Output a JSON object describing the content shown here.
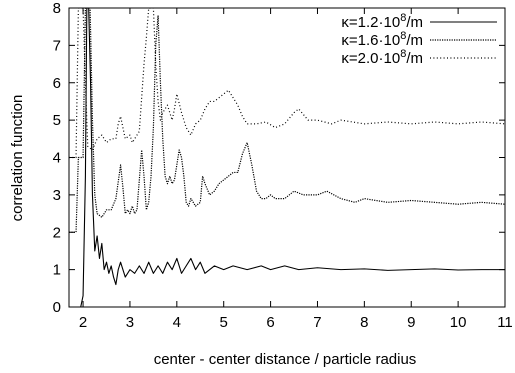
{
  "chart_data": {
    "type": "line",
    "title": "",
    "xlabel": "center - center distance / particle radius",
    "ylabel": "correlation function",
    "xlim": [
      1.7,
      11
    ],
    "ylim": [
      0,
      8
    ],
    "xticks": [
      "2",
      "3",
      "4",
      "5",
      "6",
      "7",
      "8",
      "9",
      "10",
      "11"
    ],
    "yticks": [
      "0",
      "1",
      "2",
      "3",
      "4",
      "5",
      "6",
      "7",
      "8"
    ],
    "grid": false,
    "legend_position": "top-right",
    "series": [
      {
        "name": "κ=1.2·10⁸/m",
        "legend": {
          "prefix": "κ=1.2·10",
          "sup": "8",
          "suffix": "/m"
        },
        "style": "solid",
        "points": [
          [
            1.7,
            0
          ],
          [
            1.95,
            0
          ],
          [
            2.0,
            0.3
          ],
          [
            2.05,
            3.5
          ],
          [
            2.08,
            8.0
          ],
          [
            2.12,
            8.0
          ],
          [
            2.16,
            6.0
          ],
          [
            2.2,
            3.0
          ],
          [
            2.25,
            1.5
          ],
          [
            2.3,
            1.9
          ],
          [
            2.35,
            1.3
          ],
          [
            2.4,
            1.7
          ],
          [
            2.45,
            1.0
          ],
          [
            2.5,
            1.2
          ],
          [
            2.55,
            0.9
          ],
          [
            2.6,
            1.1
          ],
          [
            2.65,
            0.8
          ],
          [
            2.7,
            0.6
          ],
          [
            2.75,
            1.0
          ],
          [
            2.8,
            1.2
          ],
          [
            2.9,
            0.8
          ],
          [
            3.0,
            1.0
          ],
          [
            3.1,
            0.9
          ],
          [
            3.2,
            1.1
          ],
          [
            3.3,
            0.9
          ],
          [
            3.4,
            1.2
          ],
          [
            3.5,
            0.9
          ],
          [
            3.6,
            1.1
          ],
          [
            3.7,
            0.9
          ],
          [
            3.8,
            1.2
          ],
          [
            3.9,
            1.0
          ],
          [
            4.0,
            1.3
          ],
          [
            4.1,
            0.9
          ],
          [
            4.2,
            1.1
          ],
          [
            4.3,
            1.3
          ],
          [
            4.4,
            1.0
          ],
          [
            4.5,
            1.2
          ],
          [
            4.6,
            0.9
          ],
          [
            4.8,
            1.1
          ],
          [
            5.0,
            1.0
          ],
          [
            5.2,
            1.1
          ],
          [
            5.5,
            1.0
          ],
          [
            5.8,
            1.1
          ],
          [
            6.0,
            1.0
          ],
          [
            6.3,
            1.1
          ],
          [
            6.6,
            1.0
          ],
          [
            7.0,
            1.05
          ],
          [
            7.5,
            1.0
          ],
          [
            8.0,
            1.02
          ],
          [
            8.5,
            0.98
          ],
          [
            9.0,
            1.0
          ],
          [
            9.5,
            1.02
          ],
          [
            10.0,
            0.99
          ],
          [
            10.5,
            1.0
          ],
          [
            11.0,
            1.0
          ]
        ]
      },
      {
        "name": "κ=1.6·10⁸/m",
        "legend": {
          "prefix": "κ=1.6·10",
          "sup": "8",
          "suffix": "/m"
        },
        "style": "dotted",
        "points": [
          [
            1.7,
            2.0
          ],
          [
            1.85,
            2.0
          ],
          [
            1.9,
            4.0
          ],
          [
            2.0,
            4.0
          ],
          [
            2.05,
            8.0
          ],
          [
            2.15,
            8.0
          ],
          [
            2.2,
            5.0
          ],
          [
            2.25,
            3.0
          ],
          [
            2.3,
            2.5
          ],
          [
            2.4,
            2.4
          ],
          [
            2.5,
            2.6
          ],
          [
            2.6,
            2.6
          ],
          [
            2.7,
            2.9
          ],
          [
            2.8,
            3.8
          ],
          [
            2.85,
            3.2
          ],
          [
            2.9,
            2.5
          ],
          [
            2.95,
            2.6
          ],
          [
            3.0,
            2.5
          ],
          [
            3.05,
            2.7
          ],
          [
            3.1,
            2.5
          ],
          [
            3.15,
            2.6
          ],
          [
            3.2,
            3.4
          ],
          [
            3.25,
            4.2
          ],
          [
            3.3,
            3.5
          ],
          [
            3.35,
            2.6
          ],
          [
            3.4,
            2.8
          ],
          [
            3.45,
            3.5
          ],
          [
            3.5,
            4.8
          ],
          [
            3.55,
            7.0
          ],
          [
            3.6,
            7.8
          ],
          [
            3.65,
            6.0
          ],
          [
            3.7,
            4.5
          ],
          [
            3.75,
            3.5
          ],
          [
            3.8,
            3.3
          ],
          [
            3.85,
            3.5
          ],
          [
            3.9,
            3.3
          ],
          [
            3.95,
            3.4
          ],
          [
            4.0,
            3.8
          ],
          [
            4.05,
            4.2
          ],
          [
            4.1,
            4.0
          ],
          [
            4.15,
            3.5
          ],
          [
            4.2,
            2.8
          ],
          [
            4.25,
            2.7
          ],
          [
            4.3,
            2.9
          ],
          [
            4.4,
            2.7
          ],
          [
            4.5,
            2.8
          ],
          [
            4.55,
            3.5
          ],
          [
            4.6,
            3.3
          ],
          [
            4.7,
            3.0
          ],
          [
            4.8,
            3.1
          ],
          [
            4.9,
            3.3
          ],
          [
            5.0,
            3.4
          ],
          [
            5.1,
            3.5
          ],
          [
            5.2,
            3.6
          ],
          [
            5.3,
            3.6
          ],
          [
            5.4,
            4.1
          ],
          [
            5.5,
            4.4
          ],
          [
            5.6,
            3.8
          ],
          [
            5.7,
            3.1
          ],
          [
            5.8,
            2.9
          ],
          [
            5.9,
            2.9
          ],
          [
            6.0,
            3.0
          ],
          [
            6.1,
            2.9
          ],
          [
            6.3,
            2.9
          ],
          [
            6.5,
            3.1
          ],
          [
            6.7,
            3.0
          ],
          [
            7.0,
            3.0
          ],
          [
            7.2,
            3.1
          ],
          [
            7.5,
            2.9
          ],
          [
            7.8,
            2.8
          ],
          [
            8.0,
            2.9
          ],
          [
            8.5,
            2.8
          ],
          [
            9.0,
            2.85
          ],
          [
            9.5,
            2.8
          ],
          [
            10.0,
            2.75
          ],
          [
            10.5,
            2.8
          ],
          [
            11.0,
            2.75
          ]
        ]
      },
      {
        "name": "κ=2.0·10⁸/m",
        "legend": {
          "prefix": "κ=2.0·10",
          "sup": "8",
          "suffix": "/m"
        },
        "style": "sparse-dotted",
        "points": [
          [
            1.7,
            4.0
          ],
          [
            1.85,
            4.0
          ],
          [
            1.9,
            8.0
          ],
          [
            2.0,
            8.0
          ],
          [
            2.05,
            6.0
          ],
          [
            2.1,
            4.3
          ],
          [
            2.2,
            4.2
          ],
          [
            2.3,
            4.5
          ],
          [
            2.4,
            4.6
          ],
          [
            2.5,
            4.4
          ],
          [
            2.6,
            4.5
          ],
          [
            2.7,
            4.5
          ],
          [
            2.75,
            4.9
          ],
          [
            2.8,
            5.1
          ],
          [
            2.85,
            4.8
          ],
          [
            2.9,
            4.5
          ],
          [
            3.0,
            4.6
          ],
          [
            3.05,
            4.4
          ],
          [
            3.1,
            4.5
          ],
          [
            3.2,
            4.7
          ],
          [
            3.3,
            6.5
          ],
          [
            3.35,
            7.2
          ],
          [
            3.4,
            8.0
          ],
          [
            3.5,
            8.0
          ],
          [
            3.55,
            6.5
          ],
          [
            3.6,
            5.5
          ],
          [
            3.65,
            5.0
          ],
          [
            3.7,
            5.2
          ],
          [
            3.8,
            5.4
          ],
          [
            3.9,
            5.0
          ],
          [
            3.95,
            5.3
          ],
          [
            4.0,
            5.7
          ],
          [
            4.1,
            5.2
          ],
          [
            4.2,
            4.8
          ],
          [
            4.3,
            4.6
          ],
          [
            4.4,
            4.9
          ],
          [
            4.5,
            5.0
          ],
          [
            4.6,
            5.3
          ],
          [
            4.7,
            5.5
          ],
          [
            4.8,
            5.5
          ],
          [
            4.9,
            5.6
          ],
          [
            5.0,
            5.7
          ],
          [
            5.1,
            5.8
          ],
          [
            5.2,
            5.6
          ],
          [
            5.3,
            5.4
          ],
          [
            5.4,
            5.1
          ],
          [
            5.5,
            4.9
          ],
          [
            5.7,
            4.9
          ],
          [
            5.9,
            4.95
          ],
          [
            6.1,
            4.8
          ],
          [
            6.3,
            4.9
          ],
          [
            6.5,
            5.2
          ],
          [
            6.6,
            5.3
          ],
          [
            6.8,
            5.0
          ],
          [
            7.0,
            5.0
          ],
          [
            7.3,
            4.9
          ],
          [
            7.5,
            5.0
          ],
          [
            8.0,
            4.9
          ],
          [
            8.5,
            4.95
          ],
          [
            9.0,
            4.9
          ],
          [
            9.5,
            4.95
          ],
          [
            10.0,
            4.9
          ],
          [
            10.5,
            4.95
          ],
          [
            11.0,
            4.9
          ]
        ]
      }
    ]
  }
}
